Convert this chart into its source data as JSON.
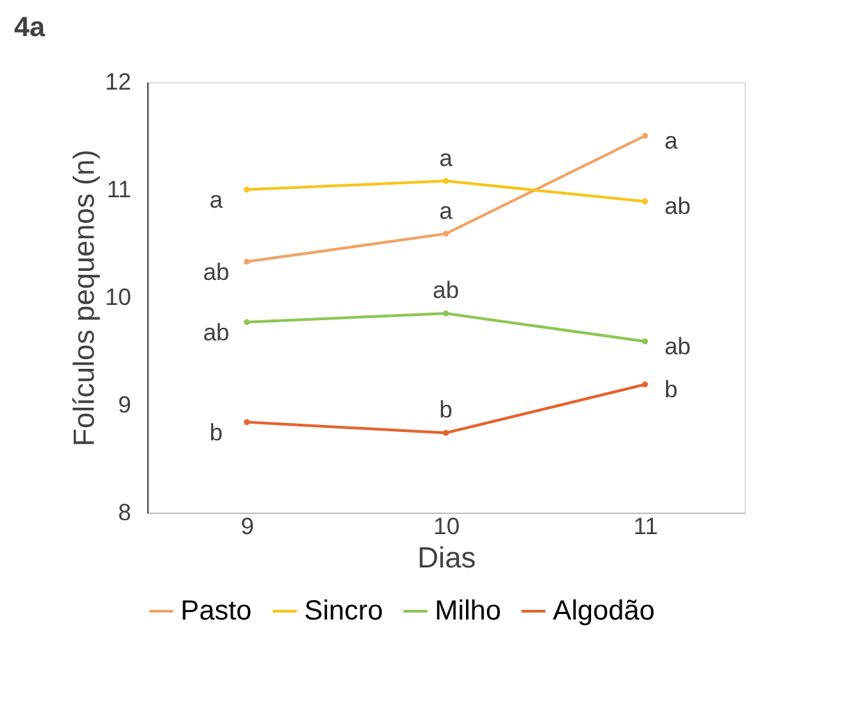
{
  "chart_data": {
    "type": "line",
    "title": "4a",
    "xlabel": "Dias",
    "ylabel": "Folículos pequenos (n)",
    "categories": [
      "9",
      "10",
      "11"
    ],
    "series": [
      {
        "name": "Pasto",
        "color": "#f0a468",
        "values": [
          10.33,
          10.59,
          11.5
        ]
      },
      {
        "name": "Sincro",
        "color": "#f7c51e",
        "values": [
          11.0,
          11.08,
          10.89
        ]
      },
      {
        "name": "Milho",
        "color": "#8dc653",
        "values": [
          9.77,
          9.85,
          9.59
        ]
      },
      {
        "name": "Algodão",
        "color": "#e3642e",
        "values": [
          8.84,
          8.74,
          9.19
        ]
      }
    ],
    "ylim": [
      8,
      12
    ],
    "yticks": [
      8,
      9,
      10,
      11,
      12
    ],
    "grid": false,
    "legend": "bottom",
    "marker": "circle",
    "line_style": "solid",
    "annotations": [
      {
        "text": "ab",
        "x": "9",
        "y": 10.33
      },
      {
        "text": "a",
        "x": "10",
        "y": 10.59
      },
      {
        "text": "a",
        "x": "11",
        "y": 11.5
      },
      {
        "text": "a",
        "x": "9",
        "y": 11.0
      },
      {
        "text": "a",
        "x": "10",
        "y": 11.08
      },
      {
        "text": "ab",
        "x": "11",
        "y": 10.89
      },
      {
        "text": "ab",
        "x": "9",
        "y": 9.77
      },
      {
        "text": "ab",
        "x": "10",
        "y": 9.85
      },
      {
        "text": "ab",
        "x": "11",
        "y": 9.59
      },
      {
        "text": "b",
        "x": "9",
        "y": 8.84
      },
      {
        "text": "b",
        "x": "10",
        "y": 8.74
      },
      {
        "text": "b",
        "x": "11",
        "y": 9.19
      }
    ]
  }
}
